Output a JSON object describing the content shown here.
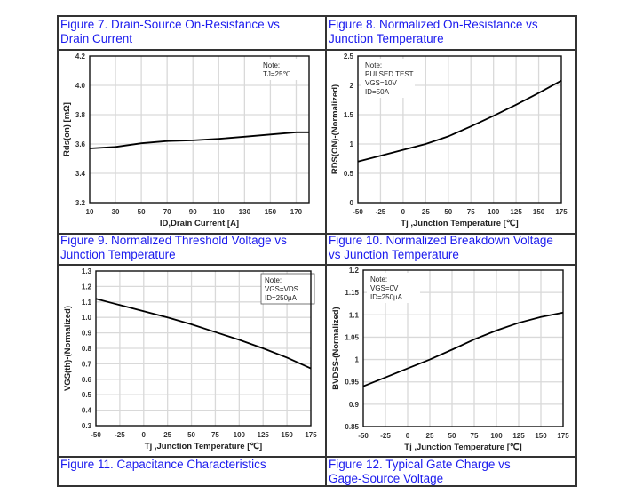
{
  "colors": {
    "title": "#1a1aee",
    "line": "#000000",
    "grid": "#d9d9d9",
    "text": "#333333"
  },
  "figures": [
    {
      "title_line1": "Figure 7. Drain-Source On-Resistance vs",
      "title_line2": "Drain Current"
    },
    {
      "title_line1": "Figure 8. Normalized On-Resistance vs",
      "title_line2": "Junction Temperature"
    },
    {
      "title_line1": "Figure 9. Normalized Threshold Voltage vs",
      "title_line2": "Junction Temperature"
    },
    {
      "title_line1": "Figure 10. Normalized Breakdown Voltage",
      "title_line2": "vs Junction Temperature"
    },
    {
      "title_line1": "Figure 11. Capacitance Characteristics",
      "title_line2": ""
    },
    {
      "title_line1": "Figure 12. Typical Gate Charge vs",
      "title_line2": "Gage-Source Voltage"
    }
  ],
  "chart_data": [
    {
      "type": "line",
      "xlabel": "ID,Drain Current [A]",
      "ylabel": "Rds(on) [mΩ]",
      "xlim": [
        10,
        180
      ],
      "ylim": [
        3.2,
        4.2
      ],
      "grid": true,
      "xticks": [
        10,
        30,
        50,
        70,
        90,
        110,
        130,
        150,
        170
      ],
      "xtick_labels": [
        "10",
        "30",
        "50",
        "70",
        "90",
        "110",
        "130",
        "150",
        "170"
      ],
      "xgrid": [
        30,
        50,
        70,
        90,
        110,
        130,
        150,
        170
      ],
      "yticks": [
        3.2,
        3.4,
        3.6,
        3.8,
        4.0,
        4.2
      ],
      "ytick_labels": [
        "3.2",
        "3.4",
        "3.6",
        "3.8",
        "4.0",
        "4.2"
      ],
      "note": [
        "Note:",
        "TJ=25℃"
      ],
      "note_placement": "top-right",
      "note_boxed": false,
      "x": [
        10,
        30,
        50,
        70,
        90,
        110,
        130,
        150,
        170,
        180
      ],
      "y": [
        3.57,
        3.58,
        3.605,
        3.62,
        3.625,
        3.635,
        3.65,
        3.665,
        3.68,
        3.68
      ]
    },
    {
      "type": "line",
      "xlabel": "Tj ,Junction Temperature [℃]",
      "ylabel": "RDS(ON)-(Normalized)",
      "xlim": [
        -50,
        175
      ],
      "ylim": [
        0,
        2.5
      ],
      "grid": true,
      "xticks": [
        -50,
        -25,
        0,
        25,
        50,
        75,
        100,
        125,
        150,
        175
      ],
      "xtick_labels": [
        "-50",
        "-25",
        "0",
        "25",
        "50",
        "75",
        "100",
        "125",
        "150",
        "175"
      ],
      "xgrid": [
        -25,
        0,
        25,
        50,
        75,
        100,
        125,
        150
      ],
      "yticks": [
        0,
        0.5,
        1,
        1.5,
        2,
        2.5
      ],
      "ytick_labels": [
        "0",
        "0.5",
        "1",
        "1.5",
        "2",
        "2.5"
      ],
      "note": [
        "Note:",
        "PULSED TEST",
        "VGS=10V",
        "ID=50A"
      ],
      "note_placement": "top-left",
      "note_boxed": false,
      "x": [
        -50,
        -25,
        0,
        25,
        50,
        75,
        100,
        125,
        150,
        175
      ],
      "y": [
        0.7,
        0.8,
        0.9,
        1.0,
        1.13,
        1.3,
        1.48,
        1.67,
        1.87,
        2.08
      ]
    },
    {
      "type": "line",
      "xlabel": "Tj ,Junction Temperature [℃]",
      "ylabel": "VGS(th)-(Normalized)",
      "xlim": [
        -50,
        175
      ],
      "ylim": [
        0.3,
        1.3
      ],
      "grid": true,
      "xticks": [
        -50,
        -25,
        0,
        25,
        50,
        75,
        100,
        125,
        150,
        175
      ],
      "xtick_labels": [
        "-50",
        "-25",
        "0",
        "25",
        "50",
        "75",
        "100",
        "125",
        "150",
        "175"
      ],
      "xgrid": [
        -25,
        0,
        25,
        50,
        75,
        100,
        125,
        150
      ],
      "yticks": [
        0.3,
        0.4,
        0.5,
        0.6,
        0.7,
        0.8,
        0.9,
        1.0,
        1.1,
        1.2,
        1.3
      ],
      "ytick_labels": [
        "0.3",
        "0.4",
        "0.5",
        "0.6",
        "0.7",
        "0.8",
        "0.9",
        "1.0",
        "1.1",
        "1.2",
        "1.3"
      ],
      "note": [
        "Note:",
        "VGS=VDS",
        "ID=250μA"
      ],
      "note_placement": "top-right",
      "note_boxed": true,
      "x": [
        -50,
        -25,
        0,
        25,
        50,
        75,
        100,
        125,
        150,
        175
      ],
      "y": [
        1.12,
        1.08,
        1.04,
        1.0,
        0.955,
        0.905,
        0.855,
        0.8,
        0.74,
        0.67
      ]
    },
    {
      "type": "line",
      "xlabel": "Tj ,Junction Temperature [℃]",
      "ylabel": "BVDSS-(Normalized)",
      "xlim": [
        -50,
        175
      ],
      "ylim": [
        0.85,
        1.2
      ],
      "grid": true,
      "xticks": [
        -50,
        -25,
        0,
        25,
        50,
        75,
        100,
        125,
        150,
        175
      ],
      "xtick_labels": [
        "-50",
        "-25",
        "0",
        "25",
        "50",
        "75",
        "100",
        "125",
        "150",
        "175"
      ],
      "xgrid": [
        -25,
        0,
        25,
        50,
        75,
        100,
        125,
        150
      ],
      "yticks": [
        0.85,
        0.9,
        0.95,
        1,
        1.05,
        1.1,
        1.15,
        1.2
      ],
      "ytick_labels": [
        "0.85",
        "0.9",
        "0.95",
        "1",
        "1.05",
        "1.1",
        "1.15",
        "1.2"
      ],
      "note": [
        "Note:",
        "VGS=0V",
        "ID=250μA"
      ],
      "note_placement": "top-left",
      "note_boxed": false,
      "x": [
        -50,
        -25,
        0,
        25,
        50,
        75,
        100,
        125,
        150,
        175
      ],
      "y": [
        0.94,
        0.96,
        0.98,
        1.0,
        1.022,
        1.045,
        1.065,
        1.082,
        1.095,
        1.105
      ]
    }
  ]
}
